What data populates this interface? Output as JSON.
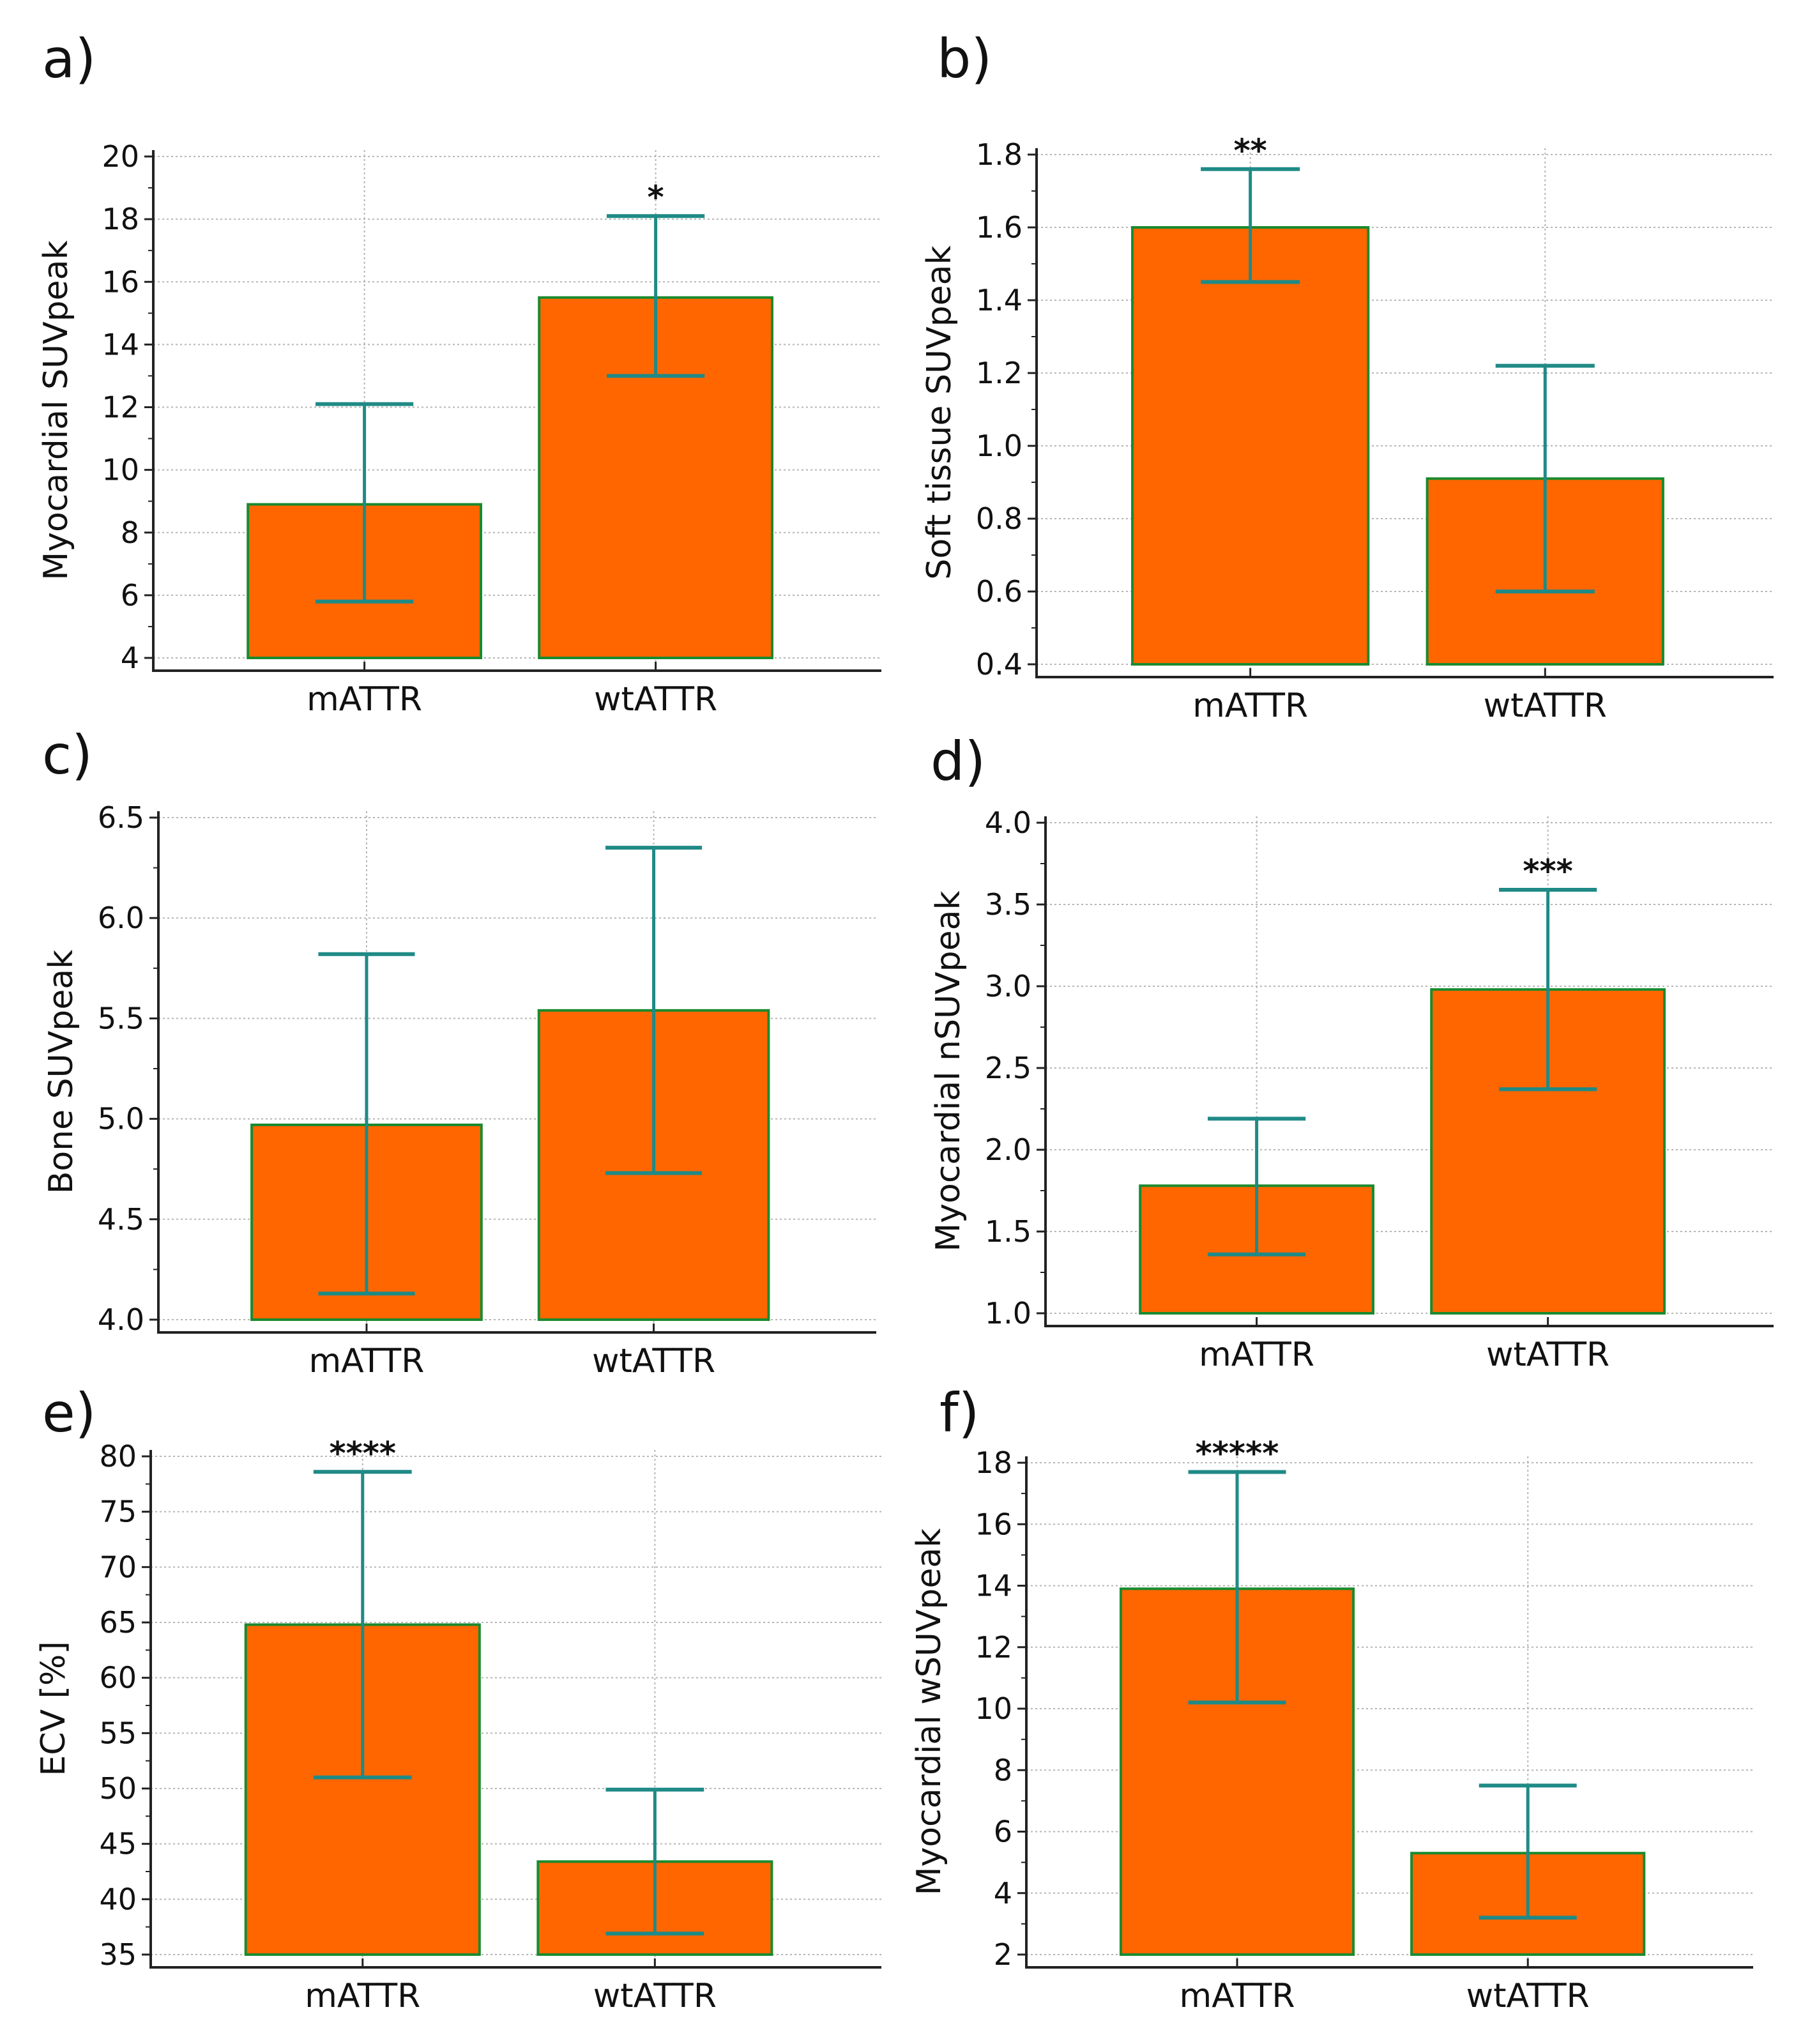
{
  "chart_data": [
    {
      "type": "bar",
      "panel_label": "a)",
      "categories": [
        "mATTR",
        "wtATTR"
      ],
      "values": [
        8.9,
        15.5
      ],
      "error_low": [
        5.8,
        13.0
      ],
      "error_high": [
        12.1,
        18.1
      ],
      "ylabel": "Myocardial SUVpeak",
      "ylim": [
        4,
        20
      ],
      "yticks": [
        4,
        6,
        8,
        10,
        12,
        14,
        16,
        18,
        20
      ],
      "ytick_labels": [
        "4",
        "6",
        "8",
        "10",
        "12",
        "14",
        "16",
        "18",
        "20"
      ],
      "significance": [
        "",
        "*"
      ],
      "grid": true
    },
    {
      "type": "bar",
      "panel_label": "b)",
      "categories": [
        "mATTR",
        "wtATTR"
      ],
      "values": [
        1.6,
        0.91
      ],
      "error_low": [
        1.45,
        0.6
      ],
      "error_high": [
        1.76,
        1.22
      ],
      "ylabel": "Soft tissue SUVpeak",
      "ylim": [
        0.4,
        1.8
      ],
      "yticks": [
        0.4,
        0.6,
        0.8,
        1.0,
        1.2,
        1.4,
        1.6,
        1.8
      ],
      "ytick_labels": [
        "0.4",
        "0.6",
        "0.8",
        "1.0",
        "1.2",
        "1.4",
        "1.6",
        "1.8"
      ],
      "significance": [
        "**",
        ""
      ],
      "grid": true
    },
    {
      "type": "bar",
      "panel_label": "c)",
      "categories": [
        "mATTR",
        "wtATTR"
      ],
      "values": [
        4.97,
        5.54
      ],
      "error_low": [
        4.13,
        4.73
      ],
      "error_high": [
        5.82,
        6.35
      ],
      "ylabel": "Bone SUVpeak",
      "ylim": [
        4.0,
        6.5
      ],
      "yticks": [
        4.0,
        4.5,
        5.0,
        5.5,
        6.0,
        6.5
      ],
      "ytick_labels": [
        "4.0",
        "4.5",
        "5.0",
        "5.5",
        "6.0",
        "6.5"
      ],
      "significance": [
        "",
        ""
      ],
      "grid": true
    },
    {
      "type": "bar",
      "panel_label": "d)",
      "categories": [
        "mATTR",
        "wtATTR"
      ],
      "values": [
        1.78,
        2.98
      ],
      "error_low": [
        1.36,
        2.37
      ],
      "error_high": [
        2.19,
        3.59
      ],
      "ylabel": "Myocardial nSUVpeak",
      "ylim": [
        1.0,
        4.0
      ],
      "yticks": [
        1.0,
        1.5,
        2.0,
        2.5,
        3.0,
        3.5,
        4.0
      ],
      "ytick_labels": [
        "1.0",
        "1.5",
        "2.0",
        "2.5",
        "3.0",
        "3.5",
        "4.0"
      ],
      "significance": [
        "",
        "***"
      ],
      "grid": true
    },
    {
      "type": "bar",
      "panel_label": "e)",
      "categories": [
        "mATTR",
        "wtATTR"
      ],
      "values": [
        64.8,
        43.4
      ],
      "error_low": [
        51.0,
        36.9
      ],
      "error_high": [
        78.6,
        49.9
      ],
      "ylabel": "ECV [%]",
      "ylim": [
        35,
        80
      ],
      "yticks": [
        35,
        40,
        45,
        50,
        55,
        60,
        65,
        70,
        75,
        80
      ],
      "ytick_labels": [
        "35",
        "40",
        "45",
        "50",
        "55",
        "60",
        "65",
        "70",
        "75",
        "80"
      ],
      "significance": [
        "****",
        ""
      ],
      "grid": true
    },
    {
      "type": "bar",
      "panel_label": "f)",
      "categories": [
        "mATTR",
        "wtATTR"
      ],
      "values": [
        13.9,
        5.3
      ],
      "error_low": [
        10.2,
        3.2
      ],
      "error_high": [
        17.7,
        7.5
      ],
      "ylabel": "Myocardial wSUVpeak",
      "ylim": [
        2,
        18
      ],
      "yticks": [
        2,
        4,
        6,
        8,
        10,
        12,
        14,
        16,
        18
      ],
      "ytick_labels": [
        "2",
        "4",
        "6",
        "8",
        "10",
        "12",
        "14",
        "16",
        "18"
      ],
      "significance": [
        "*****",
        ""
      ],
      "grid": true
    }
  ],
  "colors": {
    "bar_fill": "#ff6600",
    "bar_edge": "#1a8a2e",
    "error_bar": "#1f8a86",
    "grid": "#b5b5b5",
    "axis": "#222222"
  }
}
